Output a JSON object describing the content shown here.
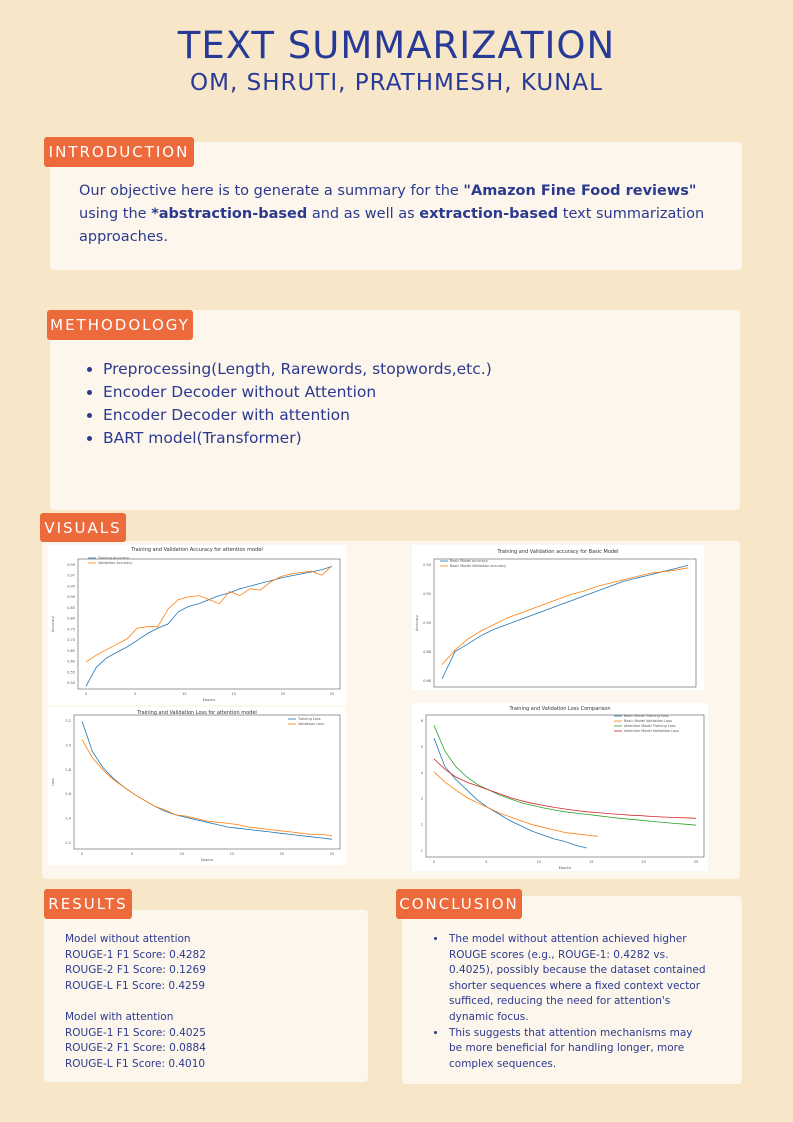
{
  "header": {
    "title": "TEXT SUMMARIZATION",
    "authors": "OM, SHRUTI, PRATHMESH, KUNAL"
  },
  "introduction": {
    "label": "INTRODUCTION",
    "p1": "Our objective here is to generate a summary for the ",
    "b1": "\"Amazon Fine Food reviews\"",
    "p2": " using the ",
    "b2": "*abstraction-based",
    "p3": " and as well as ",
    "b3": "extraction-based",
    "p4": " text summarization approaches."
  },
  "methodology": {
    "label": "METHODOLOGY",
    "items": [
      "Preprocessing(Length, Rarewords, stopwords,etc.)",
      "Encoder Decoder without Attention",
      "Encoder Decoder with attention",
      "BART model(Transformer)"
    ]
  },
  "visuals": {
    "label": "VISUALS"
  },
  "chart_data": [
    {
      "type": "line",
      "title": "Training and Validation Accuracy for attention model",
      "xlabel": "Epochs",
      "ylabel": "Accuracy",
      "x": [
        0,
        1,
        2,
        3,
        4,
        5,
        6,
        7,
        8,
        9,
        10,
        11,
        12,
        13,
        14,
        15,
        16,
        17,
        18,
        19,
        20,
        21,
        22,
        23,
        24
      ],
      "yticks": [
        "0.50",
        "0.55",
        "0.60",
        "0.65",
        "0.70",
        "0.75",
        "0.80",
        "0.85",
        "0.90",
        "0.95",
        "0.97",
        "0.99"
      ],
      "xticks": [
        "0",
        "5",
        "10",
        "15",
        "20",
        "25"
      ],
      "series": [
        {
          "name": "Training Accuracy",
          "color": "#1f77b4",
          "values": [
            0.2,
            1.6,
            2.3,
            2.7,
            3.1,
            3.6,
            4.1,
            4.5,
            4.8,
            5.7,
            6.1,
            6.3,
            6.6,
            6.9,
            7.1,
            7.4,
            7.6,
            7.8,
            8.0,
            8.2,
            8.35,
            8.5,
            8.65,
            8.8,
            9.05
          ]
        },
        {
          "name": "Validation Accuracy",
          "color": "#ff7f0e",
          "values": [
            2.0,
            2.5,
            2.9,
            3.3,
            3.7,
            4.5,
            4.6,
            4.6,
            5.9,
            6.6,
            6.8,
            6.9,
            6.6,
            6.3,
            7.2,
            6.9,
            7.4,
            7.3,
            7.9,
            8.3,
            8.5,
            8.6,
            8.7,
            8.4,
            9.1
          ]
        }
      ]
    },
    {
      "type": "line",
      "title": "Training and Validation accuracy for Basic Model",
      "xlabel": "",
      "ylabel": "Accuracy",
      "x": [
        0,
        1,
        2,
        3,
        4,
        5,
        6,
        7,
        8,
        9,
        10,
        11,
        12,
        13,
        14,
        15,
        16,
        17,
        18,
        19
      ],
      "yticks": [
        "0.86",
        "0.88",
        "0.90",
        "0.92",
        "0.94"
      ],
      "xticks": [],
      "series": [
        {
          "name": "Basic Model accuracy",
          "color": "#1f77b4",
          "values": [
            0.0,
            1.7,
            2.2,
            2.7,
            3.1,
            3.4,
            3.7,
            4.0,
            4.3,
            4.6,
            4.9,
            5.2,
            5.5,
            5.8,
            6.1,
            6.3,
            6.5,
            6.7,
            6.9,
            7.1
          ]
        },
        {
          "name": "Basic Model Validation accuracy",
          "color": "#ff7f0e",
          "values": [
            0.9,
            1.8,
            2.5,
            3.0,
            3.4,
            3.8,
            4.1,
            4.4,
            4.7,
            5.0,
            5.3,
            5.5,
            5.8,
            6.0,
            6.2,
            6.4,
            6.6,
            6.7,
            6.8,
            6.95
          ]
        }
      ]
    },
    {
      "type": "line",
      "title": "Training and Validation Loss for attention model",
      "xlabel": "Epochs",
      "ylabel": "Loss",
      "x": [
        0,
        1,
        2,
        3,
        4,
        5,
        6,
        7,
        8,
        9,
        10,
        11,
        12,
        13,
        14,
        15,
        16,
        17,
        18,
        19,
        20,
        21,
        22,
        23,
        24
      ],
      "yticks": [
        "2.2",
        "2.4",
        "2.6",
        "2.8",
        "3.0",
        "3.2"
      ],
      "xticks": [
        "0",
        "5",
        "10",
        "15",
        "20",
        "25"
      ],
      "series": [
        {
          "name": "Training Loss",
          "color": "#1f77b4",
          "values": [
            3.2,
            2.95,
            2.82,
            2.73,
            2.66,
            2.6,
            2.55,
            2.5,
            2.46,
            2.43,
            2.41,
            2.39,
            2.37,
            2.35,
            2.33,
            2.32,
            2.31,
            2.3,
            2.29,
            2.28,
            2.27,
            2.26,
            2.25,
            2.24,
            2.23
          ]
        },
        {
          "name": "Validation Loss",
          "color": "#ff7f0e",
          "values": [
            3.05,
            2.9,
            2.8,
            2.72,
            2.66,
            2.6,
            2.55,
            2.5,
            2.47,
            2.43,
            2.42,
            2.4,
            2.38,
            2.37,
            2.36,
            2.35,
            2.33,
            2.32,
            2.31,
            2.3,
            2.29,
            2.28,
            2.27,
            2.27,
            2.26
          ]
        }
      ]
    },
    {
      "type": "line",
      "title": "Training and Validation Loss Comparison",
      "xlabel": "Epochs",
      "ylabel": "",
      "x": [
        0,
        1,
        2,
        3,
        4,
        5,
        6,
        7,
        8,
        9,
        10,
        11,
        12,
        13,
        14,
        15,
        16,
        17,
        18,
        19,
        20,
        21,
        22,
        23,
        24
      ],
      "yticks": [
        "1",
        "2",
        "3",
        "4",
        "5",
        "6"
      ],
      "xticks": [
        "0",
        "5",
        "10",
        "15",
        "20",
        "25"
      ],
      "series": [
        {
          "name": "Basic Model Training Loss",
          "color": "#1f77b4",
          "values": [
            5.3,
            4.2,
            3.7,
            3.3,
            2.9,
            2.6,
            2.35,
            2.1,
            1.9,
            1.7,
            1.55,
            1.4,
            1.3,
            1.15,
            1.05,
            null,
            null,
            null,
            null,
            null,
            null,
            null,
            null,
            null,
            null
          ]
        },
        {
          "name": "Basic Model Validation Loss",
          "color": "#ff7f0e",
          "values": [
            4.0,
            3.6,
            3.3,
            3.0,
            2.8,
            2.6,
            2.4,
            2.25,
            2.1,
            1.95,
            1.85,
            1.75,
            1.65,
            1.6,
            1.55,
            1.5,
            null,
            null,
            null,
            null,
            null,
            null,
            null,
            null,
            null
          ]
        },
        {
          "name": "Attention Model Training Loss",
          "color": "#2ca02c",
          "values": [
            5.8,
            4.8,
            4.2,
            3.8,
            3.5,
            3.3,
            3.1,
            2.95,
            2.8,
            2.7,
            2.6,
            2.52,
            2.45,
            2.4,
            2.35,
            2.3,
            2.25,
            2.2,
            2.16,
            2.12,
            2.08,
            2.04,
            2.0,
            1.97,
            1.93
          ]
        },
        {
          "name": "Attention Model Validation Loss",
          "color": "#d62728",
          "values": [
            4.5,
            4.1,
            3.8,
            3.6,
            3.45,
            3.3,
            3.15,
            3.0,
            2.88,
            2.78,
            2.7,
            2.62,
            2.56,
            2.5,
            2.45,
            2.42,
            2.38,
            2.35,
            2.32,
            2.3,
            2.27,
            2.25,
            2.23,
            2.22,
            2.2
          ]
        }
      ]
    }
  ],
  "results": {
    "label": "RESULTS",
    "lines": [
      "Model without attention",
      "ROUGE-1 F1 Score: 0.4282",
      "ROUGE-2 F1 Score: 0.1269",
      "ROUGE-L F1 Score: 0.4259",
      "",
      "Model with attention",
      "ROUGE-1 F1 Score: 0.4025",
      "ROUGE-2 F1 Score: 0.0884",
      "ROUGE-L F1 Score: 0.4010"
    ]
  },
  "conclusion": {
    "label": "CONCLUSION",
    "items": [
      "The model without attention achieved higher ROUGE scores (e.g., ROUGE-1: 0.4282 vs. 0.4025), possibly because the dataset contained shorter sequences where a fixed context vector sufficed, reducing the need for attention's dynamic focus.",
      "This suggests that attention mechanisms may be more beneficial for handling longer, more complex sequences."
    ]
  }
}
